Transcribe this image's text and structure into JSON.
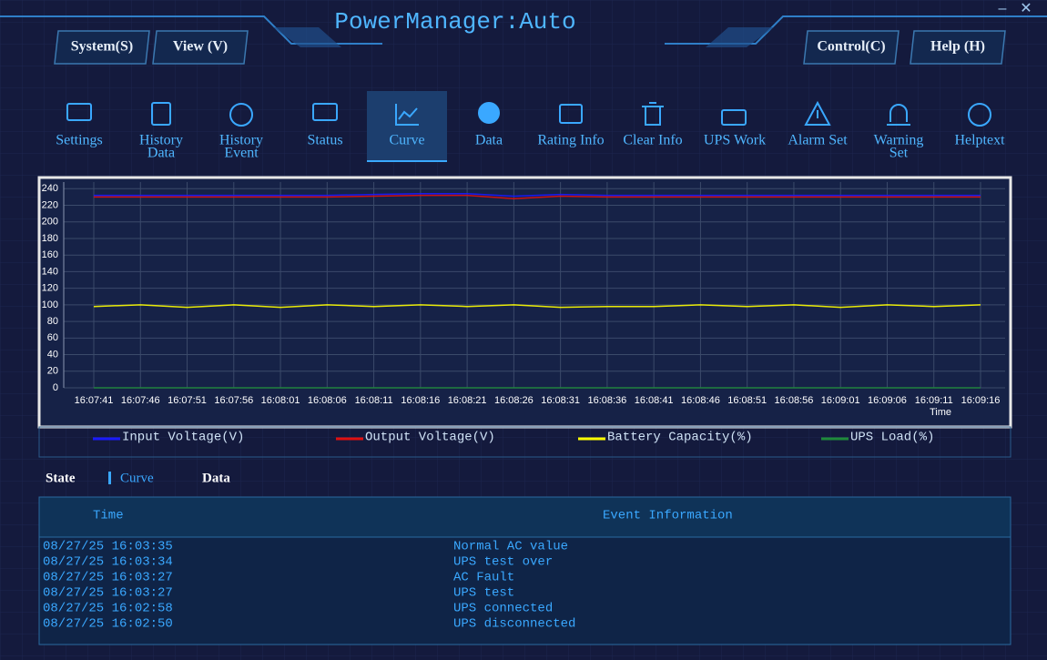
{
  "window": {
    "title": "PowerManager:Auto"
  },
  "menu": [
    "System(S)",
    "View (V)",
    "Control(C)",
    "Help (H)"
  ],
  "toolbar": [
    [
      "Settings"
    ],
    [
      "History",
      "Data"
    ],
    [
      "History",
      "Event"
    ],
    [
      "Status"
    ],
    [
      "Curve"
    ],
    [
      "Data"
    ],
    [
      "Rating Info"
    ],
    [
      "Clear Info"
    ],
    [
      "UPS Work"
    ],
    [
      "Alarm Set"
    ],
    [
      "Warning",
      "Set"
    ],
    [
      "Helptext"
    ]
  ],
  "chart_data": {
    "type": "line",
    "x_label": "Time",
    "categories": [
      "16:07:41",
      "16:07:46",
      "16:07:51",
      "16:07:56",
      "16:08:01",
      "16:08:06",
      "16:08:11",
      "16:08:16",
      "16:08:21",
      "16:08:26",
      "16:08:31",
      "16:08:36",
      "16:08:41",
      "16:08:46",
      "16:08:51",
      "16:08:56",
      "16:09:01",
      "16:09:06",
      "16:09:11",
      "16:09:16"
    ],
    "ylim": [
      0,
      248
    ],
    "yticks": [
      0,
      20,
      40,
      60,
      80,
      100,
      120,
      140,
      160,
      180,
      200,
      220,
      240
    ],
    "grid": true,
    "series": [
      {
        "name": "Input Voltage(V)",
        "color": "#1a1aff",
        "values": [
          232,
          232,
          232,
          232,
          232,
          232,
          233,
          234,
          234,
          231,
          233,
          232,
          232,
          232,
          232,
          232,
          232,
          232,
          232,
          232
        ]
      },
      {
        "name": "Output Voltage(V)",
        "color": "#e01010",
        "values": [
          230,
          230,
          230,
          230,
          230,
          230,
          231,
          232,
          232,
          228,
          231,
          230,
          230,
          230,
          230,
          230,
          230,
          230,
          230,
          230
        ]
      },
      {
        "name": "Battery Capacity(%)",
        "color": "#ffff00",
        "values": [
          98,
          100,
          97,
          100,
          97,
          100,
          98,
          100,
          98,
          100,
          97,
          98,
          98,
          100,
          98,
          100,
          97,
          100,
          98,
          100
        ]
      },
      {
        "name": "UPS Load(%)",
        "color": "#1f8a3a",
        "values": [
          0,
          0,
          0,
          0,
          0,
          0,
          0,
          0,
          0,
          0,
          0,
          0,
          0,
          0,
          0,
          0,
          0,
          0,
          0,
          0
        ]
      }
    ]
  },
  "tabs": [
    "State",
    "Curve",
    "Data"
  ],
  "events": {
    "columns": [
      "Time",
      "Event Information"
    ],
    "rows": [
      [
        "08/27/25 16:03:35",
        "Normal AC value"
      ],
      [
        "08/27/25 16:03:34",
        "UPS test over"
      ],
      [
        "08/27/25 16:03:27",
        "AC Fault"
      ],
      [
        "08/27/25 16:03:27",
        "UPS test"
      ],
      [
        "08/27/25 16:02:58",
        "UPS connected"
      ],
      [
        "08/27/25 16:02:50",
        "UPS disconnected"
      ]
    ]
  }
}
